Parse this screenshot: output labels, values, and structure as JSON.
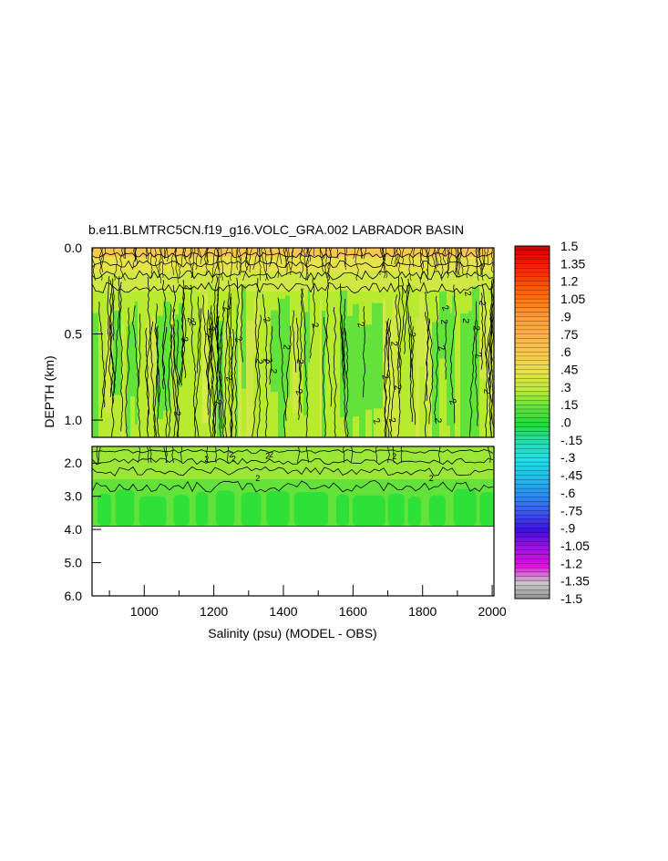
{
  "chart_data": {
    "type": "heatmap",
    "title": "b.e11.BLMTRC5CN.f19_g16.VOLC_GRA.002 LABRADOR BASIN",
    "xlabel": "Salinity (psu) (MODEL - OBS)",
    "ylabel": "DEPTH (km)",
    "xlim": [
      850,
      2005
    ],
    "x_ticks": [
      "1000",
      "1200",
      "1400",
      "1600",
      "1800",
      "2000"
    ],
    "x_tick_values": [
      1000,
      1200,
      1400,
      1600,
      1800,
      2000
    ],
    "upper_panel": {
      "ylim": [
        0.0,
        1.1
      ],
      "y_ticks": [
        "0.0",
        "0.5",
        "1.0"
      ],
      "y_tick_values": [
        0.0,
        0.5,
        1.0
      ]
    },
    "lower_panel": {
      "ylim": [
        1.5,
        6.0
      ],
      "y_ticks": [
        "2.0",
        "3.0",
        "4.0",
        "5.0",
        "6.0"
      ],
      "y_tick_values": [
        2.0,
        3.0,
        4.0,
        5.0,
        6.0
      ],
      "data_bottom_depth": 3.9
    },
    "contour_label": "2",
    "colorbar": {
      "labels": [
        "1.5",
        "1.35",
        "1.2",
        "1.05",
        ".9",
        ".75",
        ".6",
        ".45",
        ".3",
        ".15",
        ".0",
        "-.15",
        "-.3",
        "-.45",
        "-.6",
        "-.75",
        "-.9",
        "-1.05",
        "-1.2",
        "-1.35",
        "-1.5"
      ],
      "values": [
        1.5,
        1.35,
        1.2,
        1.05,
        0.9,
        0.75,
        0.6,
        0.45,
        0.3,
        0.15,
        0.0,
        -0.15,
        -0.3,
        -0.45,
        -0.6,
        -0.75,
        -0.9,
        -1.05,
        -1.2,
        -1.35,
        -1.5
      ],
      "colors": [
        "#d80000",
        "#ff1a00",
        "#ff4d00",
        "#ff7a10",
        "#ff9e3a",
        "#ffb24a",
        "#f8c84e",
        "#e6e24a",
        "#bfea3a",
        "#62e23a",
        "#22dd38",
        "#22ddb0",
        "#22e0e8",
        "#22bce8",
        "#2a8ff0",
        "#3a55f0",
        "#4010e0",
        "#a010e8",
        "#e010e0",
        "#c8c8c8",
        "#8c8c8c"
      ]
    },
    "grid": false,
    "legend": "colorbar-right"
  }
}
